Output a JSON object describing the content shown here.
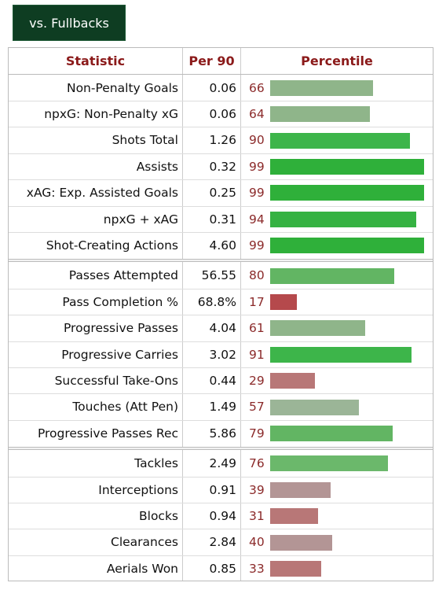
{
  "button": "vs. Fullbacks",
  "table": {
    "headers": [
      "Statistic",
      "Per 90",
      "Percentile"
    ],
    "groups": [
      {
        "rows": [
          {
            "statistic": "Non-Penalty Goals",
            "per90": "0.06",
            "percentile": 66,
            "color": "#8fb58a"
          },
          {
            "statistic": "npxG: Non-Penalty xG",
            "per90": "0.06",
            "percentile": 64,
            "color": "#8fb58a"
          },
          {
            "statistic": "Shots Total",
            "per90": "1.26",
            "percentile": 90,
            "color": "#3db54a"
          },
          {
            "statistic": "Assists",
            "per90": "0.32",
            "percentile": 99,
            "color": "#2fb03a"
          },
          {
            "statistic": "xAG: Exp. Assisted Goals",
            "per90": "0.25",
            "percentile": 99,
            "color": "#2fb03a"
          },
          {
            "statistic": "npxG + xAG",
            "per90": "0.31",
            "percentile": 94,
            "color": "#35b242"
          },
          {
            "statistic": "Shot-Creating Actions",
            "per90": "4.60",
            "percentile": 99,
            "color": "#2fb03a"
          }
        ]
      },
      {
        "rows": [
          {
            "statistic": "Passes Attempted",
            "per90": "56.55",
            "percentile": 80,
            "color": "#62b563"
          },
          {
            "statistic": "Pass Completion %",
            "per90": "68.8%",
            "percentile": 17,
            "color": "#b5494c"
          },
          {
            "statistic": "Progressive Passes",
            "per90": "4.04",
            "percentile": 61,
            "color": "#8fb58a"
          },
          {
            "statistic": "Progressive Carries",
            "per90": "3.02",
            "percentile": 91,
            "color": "#3db54a"
          },
          {
            "statistic": "Successful Take-Ons",
            "per90": "0.44",
            "percentile": 29,
            "color": "#b87777"
          },
          {
            "statistic": "Touches (Att Pen)",
            "per90": "1.49",
            "percentile": 57,
            "color": "#9bb597"
          },
          {
            "statistic": "Progressive Passes Rec",
            "per90": "5.86",
            "percentile": 79,
            "color": "#62b563"
          }
        ]
      },
      {
        "rows": [
          {
            "statistic": "Tackles",
            "per90": "2.49",
            "percentile": 76,
            "color": "#6bb86b"
          },
          {
            "statistic": "Interceptions",
            "per90": "0.91",
            "percentile": 39,
            "color": "#b39595"
          },
          {
            "statistic": "Blocks",
            "per90": "0.94",
            "percentile": 31,
            "color": "#b87777"
          },
          {
            "statistic": "Clearances",
            "per90": "2.84",
            "percentile": 40,
            "color": "#b39595"
          },
          {
            "statistic": "Aerials Won",
            "per90": "0.85",
            "percentile": 33,
            "color": "#b87777"
          }
        ]
      }
    ]
  }
}
